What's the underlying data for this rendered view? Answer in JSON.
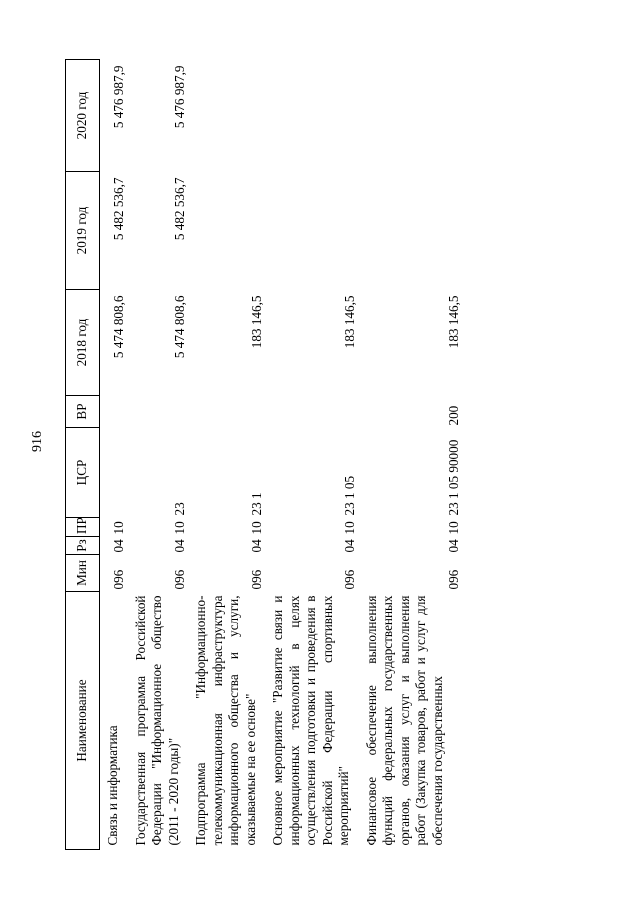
{
  "page_number": "916",
  "headers": [
    "Наименование",
    "Мин",
    "Рз",
    "ПР",
    "ЦСР",
    "ВР",
    "2018 год",
    "2019 год",
    "2020 год"
  ],
  "rows": [
    {
      "name": "Связь и информатика",
      "min": "096",
      "rz": "04",
      "pr": "10",
      "csr": "",
      "vr": "",
      "y2018": "5 474 808,6",
      "y2019": "5 482 536,7",
      "y2020": "5 476 987,9"
    },
    {
      "name": "Государственная программа Российской Федерации \"Информационное общество (2011 - 2020 годы)\"",
      "min": "096",
      "rz": "04",
      "pr": "10",
      "csr": "23",
      "vr": "",
      "y2018": "5 474 808,6",
      "y2019": "5 482 536,7",
      "y2020": "5 476 987,9"
    },
    {
      "name": "Подпрограмма \"Информационно-телекоммуникационная инфраструктура информационного общества и услуги, оказываемые на ее основе\"",
      "min": "096",
      "rz": "04",
      "pr": "10",
      "csr": "23 1",
      "vr": "",
      "y2018": "183 146,5",
      "y2019": "",
      "y2020": ""
    },
    {
      "name": "Основное мероприятие \"Развитие связи и информационных технологий в целях осуществления подготовки и проведения в Российской Федерации спортивных мероприятий\"",
      "min": "096",
      "rz": "04",
      "pr": "10",
      "csr": "23 1 05",
      "vr": "",
      "y2018": "183 146,5",
      "y2019": "",
      "y2020": ""
    },
    {
      "name": "Финансовое обеспечение выполнения функций федеральных государственных органов, оказания услуг и выполнения работ (Закупка товаров, работ и услуг для обеспечения государственных",
      "min": "096",
      "rz": "04",
      "pr": "10",
      "csr": "23 1 05 90000",
      "vr": "200",
      "y2018": "183 146,5",
      "y2019": "",
      "y2020": ""
    }
  ]
}
